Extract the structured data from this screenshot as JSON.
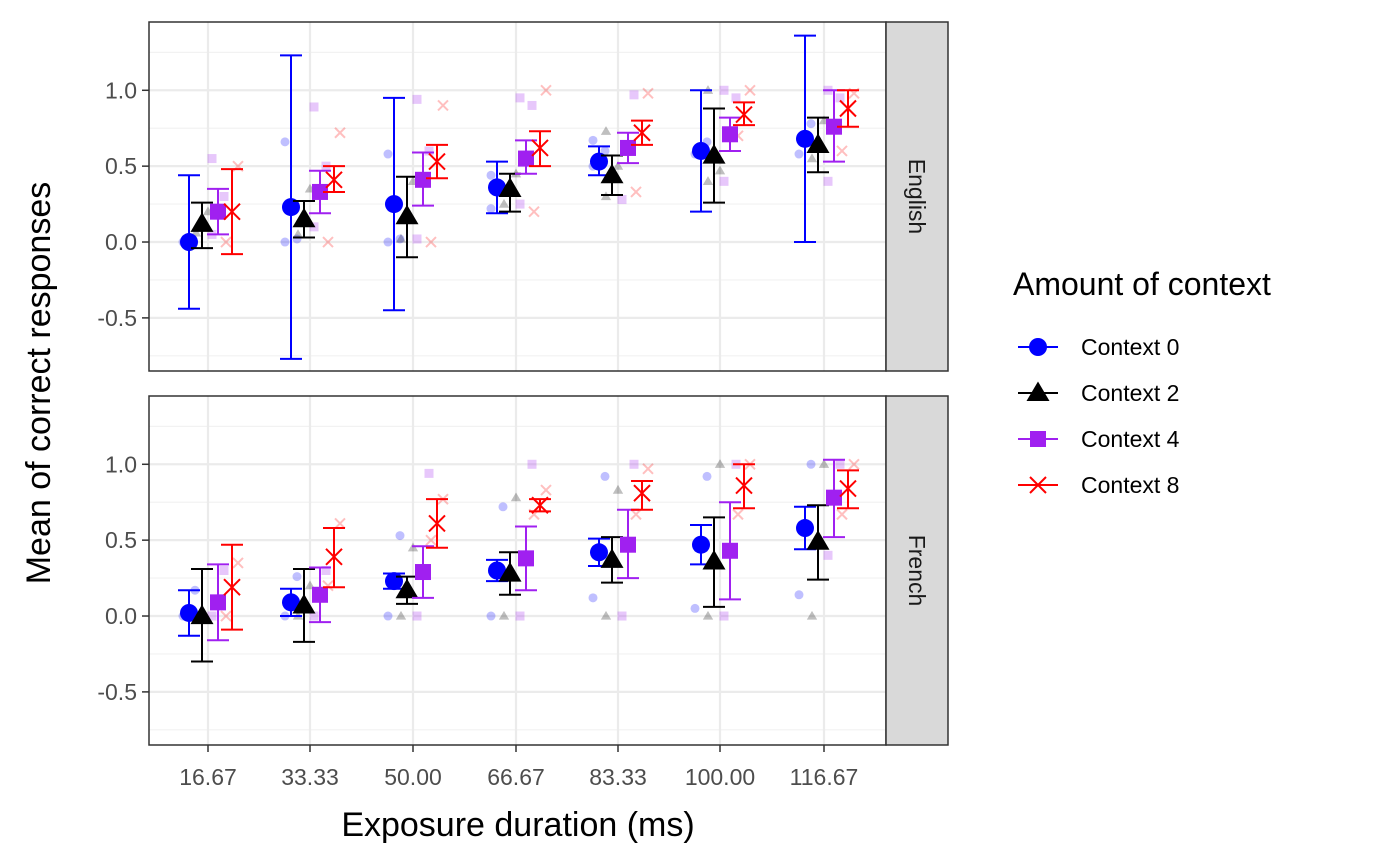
{
  "chart_data": {
    "type": "scatter",
    "xlabel": "Exposure duration (ms)",
    "ylabel": "Mean of correct responses",
    "ylim": [
      -0.85,
      1.45
    ],
    "yticks": [
      -0.5,
      0.0,
      0.5,
      1.0
    ],
    "ytick_labels": [
      "-0.5",
      "0.0",
      "0.5",
      "1.0"
    ],
    "categories": [
      "16.67",
      "33.33",
      "50.00",
      "66.67",
      "83.33",
      "100.00",
      "116.67"
    ],
    "legend": {
      "title": "Amount of context",
      "position": "right",
      "entries": [
        "Context 0",
        "Context 2",
        "Context 4",
        "Context 8"
      ]
    },
    "series_style": [
      {
        "name": "Context 0",
        "color": "#0000ff",
        "shape": "circle"
      },
      {
        "name": "Context 2",
        "color": "#000000",
        "shape": "triangle"
      },
      {
        "name": "Context 4",
        "color": "#a020f0",
        "shape": "square"
      },
      {
        "name": "Context 8",
        "color": "#ff0000",
        "shape": "cross"
      }
    ],
    "panels": [
      {
        "label": "English",
        "series": [
          {
            "name": "Context 0",
            "means": [
              0.0,
              0.23,
              0.25,
              0.36,
              0.53,
              0.6,
              0.68
            ],
            "lower": [
              -0.44,
              -0.77,
              -0.45,
              0.19,
              0.44,
              0.2,
              0.0
            ],
            "upper": [
              0.44,
              1.23,
              0.95,
              0.53,
              0.63,
              1.0,
              1.36
            ],
            "raw": [
              [
                0.0
              ],
              [
                0.0,
                0.02,
                0.66
              ],
              [
                0.0,
                0.02,
                0.58
              ],
              [
                0.22,
                0.34,
                0.44
              ],
              [
                0.5,
                0.6,
                0.67
              ],
              [
                0.58,
                0.66
              ],
              [
                0.58,
                0.78
              ]
            ]
          },
          {
            "name": "Context 2",
            "means": [
              0.12,
              0.15,
              0.17,
              0.35,
              0.44,
              0.57,
              0.64
            ],
            "lower": [
              -0.04,
              0.03,
              -0.1,
              0.2,
              0.31,
              0.26,
              0.46
            ],
            "upper": [
              0.26,
              0.27,
              0.43,
              0.45,
              0.57,
              0.88,
              0.82
            ],
            "raw": [
              [
                0.06,
                0.2
              ],
              [
                0.05,
                0.35
              ],
              [
                0.02,
                0.4
              ],
              [
                0.25,
                0.45
              ],
              [
                0.3,
                0.5,
                0.73
              ],
              [
                0.4,
                0.47,
                1.0
              ],
              [
                0.55,
                0.8
              ]
            ]
          },
          {
            "name": "Context 4",
            "means": [
              0.2,
              0.33,
              0.41,
              0.55,
              0.62,
              0.71,
              0.76
            ],
            "lower": [
              0.05,
              0.19,
              0.24,
              0.45,
              0.52,
              0.6,
              0.53
            ],
            "upper": [
              0.35,
              0.47,
              0.59,
              0.67,
              0.72,
              0.82,
              1.0
            ],
            "raw": [
              [
                0.05,
                0.3,
                0.55
              ],
              [
                0.1,
                0.5,
                0.89
              ],
              [
                0.02,
                0.6,
                0.94
              ],
              [
                0.25,
                0.9,
                0.95
              ],
              [
                0.28,
                0.97
              ],
              [
                0.4,
                0.95,
                1.0
              ],
              [
                0.4,
                0.95,
                1.0
              ]
            ]
          },
          {
            "name": "Context 8",
            "means": [
              0.2,
              0.41,
              0.53,
              0.62,
              0.72,
              0.84,
              0.88
            ],
            "lower": [
              -0.08,
              0.33,
              0.42,
              0.5,
              0.64,
              0.77,
              0.76
            ],
            "upper": [
              0.48,
              0.5,
              0.64,
              0.73,
              0.8,
              0.92,
              1.0
            ],
            "raw": [
              [
                0.0,
                0.5
              ],
              [
                0.0,
                0.72
              ],
              [
                0.0,
                0.9
              ],
              [
                0.2,
                1.0
              ],
              [
                0.33,
                0.98
              ],
              [
                0.7,
                1.0
              ],
              [
                0.6,
                0.98
              ]
            ]
          }
        ]
      },
      {
        "label": "French",
        "series": [
          {
            "name": "Context 0",
            "means": [
              0.02,
              0.09,
              0.23,
              0.3,
              0.42,
              0.47,
              0.58
            ],
            "lower": [
              -0.13,
              0.0,
              0.18,
              0.23,
              0.33,
              0.34,
              0.44
            ],
            "upper": [
              0.17,
              0.18,
              0.28,
              0.37,
              0.51,
              0.6,
              0.72
            ],
            "raw": [
              [
                0.0,
                0.17
              ],
              [
                0.0,
                0.26
              ],
              [
                0.0,
                0.53
              ],
              [
                0.0,
                0.72
              ],
              [
                0.12,
                0.92
              ],
              [
                0.05,
                0.92
              ],
              [
                0.14,
                1.0
              ]
            ]
          },
          {
            "name": "Context 2",
            "means": [
              0.0,
              0.07,
              0.17,
              0.28,
              0.37,
              0.36,
              0.49
            ],
            "lower": [
              -0.3,
              -0.17,
              0.08,
              0.14,
              0.22,
              0.06,
              0.24
            ],
            "upper": [
              0.31,
              0.31,
              0.26,
              0.42,
              0.52,
              0.65,
              0.73
            ],
            "raw": [
              [
                0.0
              ],
              [
                0.0,
                0.2
              ],
              [
                0.0,
                0.45
              ],
              [
                0.0,
                0.78
              ],
              [
                0.0,
                0.83
              ],
              [
                0.0,
                1.0
              ],
              [
                0.0,
                1.0
              ]
            ]
          },
          {
            "name": "Context 4",
            "means": [
              0.09,
              0.14,
              0.29,
              0.38,
              0.47,
              0.43,
              0.78
            ],
            "lower": [
              -0.16,
              -0.04,
              0.12,
              0.17,
              0.25,
              0.11,
              0.52
            ],
            "upper": [
              0.34,
              0.32,
              0.46,
              0.59,
              0.7,
              0.75,
              1.03
            ],
            "raw": [
              [
                0.0,
                0.3
              ],
              [
                0.0,
                0.3
              ],
              [
                0.0,
                0.94
              ],
              [
                0.0,
                1.0
              ],
              [
                0.0,
                1.0
              ],
              [
                0.0,
                1.0
              ],
              [
                0.4,
                1.0
              ]
            ]
          },
          {
            "name": "Context 8",
            "means": [
              0.19,
              0.39,
              0.61,
              0.73,
              0.81,
              0.86,
              0.84
            ],
            "lower": [
              -0.09,
              0.19,
              0.45,
              0.69,
              0.7,
              0.71,
              0.71
            ],
            "upper": [
              0.47,
              0.58,
              0.77,
              0.77,
              0.89,
              1.0,
              0.96
            ],
            "raw": [
              [
                0.0,
                0.35
              ],
              [
                0.2,
                0.61
              ],
              [
                0.5,
                0.77
              ],
              [
                0.67,
                0.83
              ],
              [
                0.67,
                0.97
              ],
              [
                0.67,
                1.0
              ],
              [
                0.67,
                1.0
              ]
            ]
          }
        ]
      }
    ]
  }
}
